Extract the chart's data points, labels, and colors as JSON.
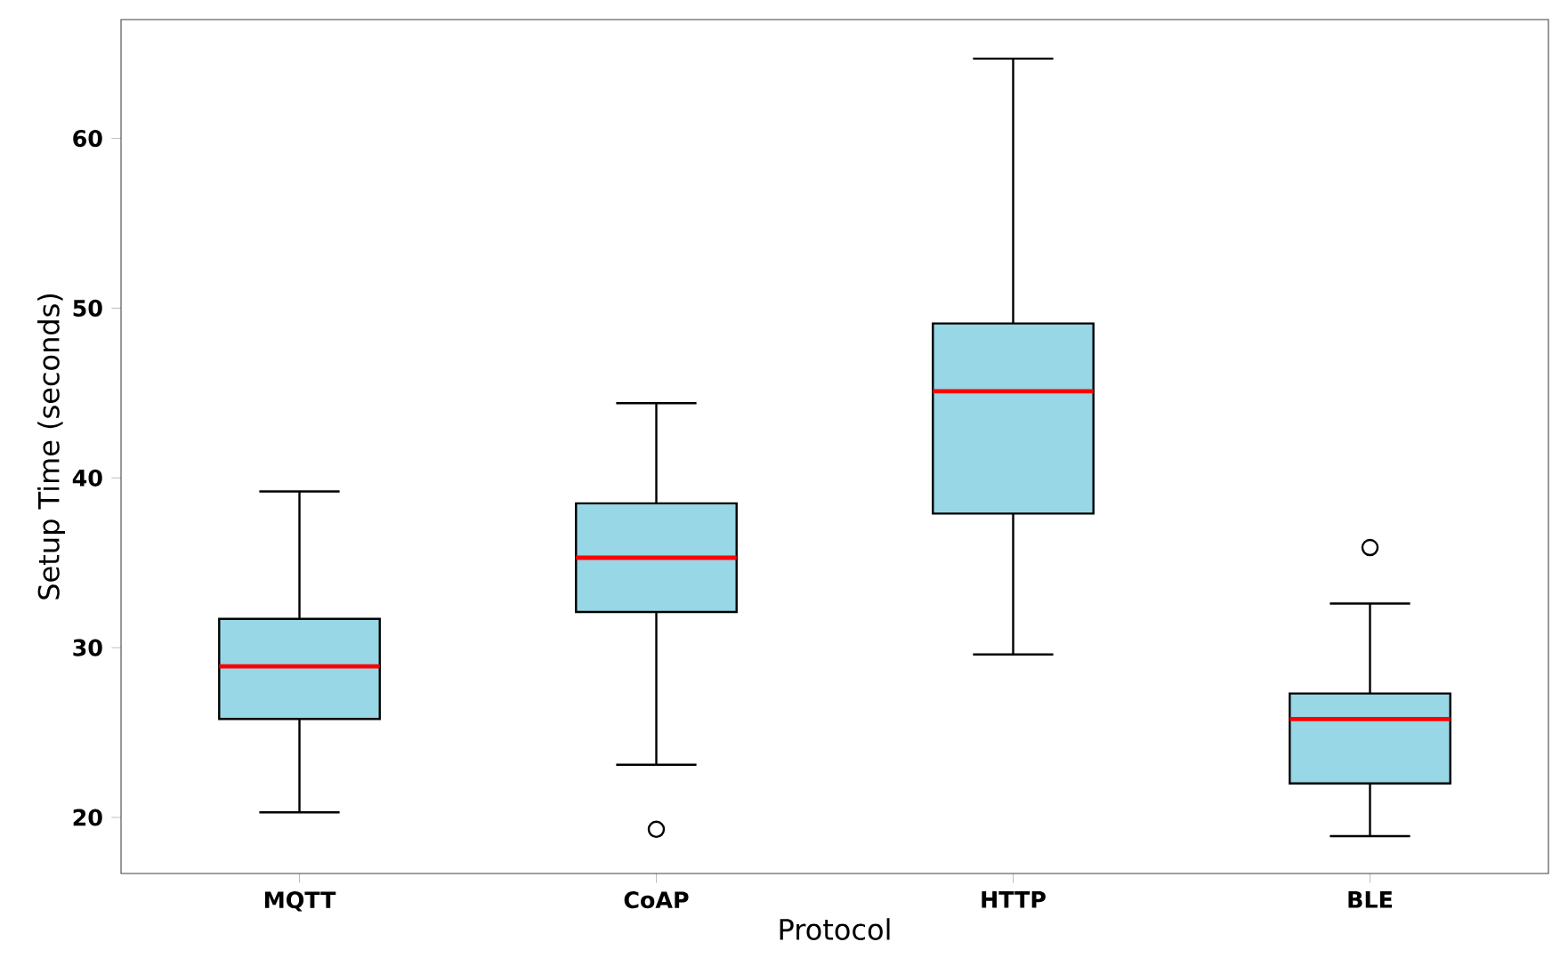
{
  "chart_data": {
    "type": "box",
    "xlabel": "Protocol",
    "ylabel": "Setup Time (seconds)",
    "categories": [
      "MQTT",
      "CoAP",
      "HTTP",
      "BLE"
    ],
    "color": "#97d7e6",
    "boxes": [
      {
        "low": 20.3,
        "q1": 25.8,
        "median": 28.9,
        "q3": 31.7,
        "high": 39.2
      },
      {
        "low": 23.1,
        "q1": 32.1,
        "median": 35.3,
        "q3": 38.5,
        "high": 44.4,
        "outliers": [
          19.3
        ]
      },
      {
        "low": 29.6,
        "q1": 37.9,
        "median": 45.1,
        "q3": 49.1,
        "high": 64.7
      },
      {
        "low": 18.9,
        "q1": 22.0,
        "median": 25.8,
        "q3": 27.3,
        "high": 32.6,
        "outliers": [
          35.9
        ]
      }
    ],
    "ylim": [
      16.7,
      67.0
    ],
    "yticks": [
      20,
      30,
      40,
      50,
      60
    ],
    "grid": false
  }
}
